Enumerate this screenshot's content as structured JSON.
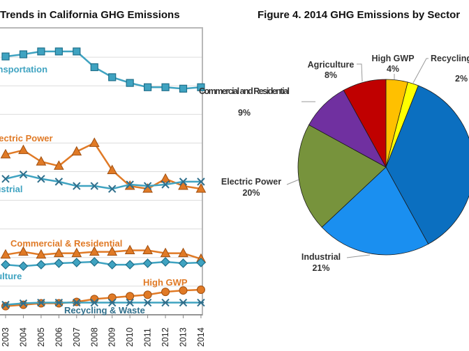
{
  "chart_data": [
    {
      "type": "line",
      "title": "Trends in California GHG Emissions",
      "x": [
        2003,
        2004,
        2005,
        2006,
        2007,
        2008,
        2009,
        2010,
        2011,
        2012,
        2013,
        2014
      ],
      "x_tick_labels": [
        "2003",
        "2004",
        "2005",
        "2006",
        "2007",
        "2008",
        "2009",
        "2010",
        "2011",
        "2012",
        "2013",
        "2014"
      ],
      "ylim": [
        0,
        200
      ],
      "grid": true,
      "series": [
        {
          "name": "Transportation",
          "color": "#3fa3c1",
          "marker": "square",
          "values": [
            180.5,
            182,
            184,
            184,
            184,
            173,
            166,
            162,
            159,
            159,
            158,
            159
          ]
        },
        {
          "name": "Electric Power",
          "color": "#e07a26",
          "marker": "triangle",
          "values": [
            112,
            115,
            107,
            104,
            114,
            120,
            101,
            90,
            88,
            95,
            90,
            88
          ]
        },
        {
          "name": "Industrial",
          "color": "#3fa3c1",
          "marker": "x",
          "values": [
            95,
            98,
            95,
            93,
            90,
            90,
            88,
            91,
            90,
            91,
            93,
            93
          ]
        },
        {
          "name": "Commercial & Residential",
          "color": "#e07a26",
          "marker": "triangle",
          "values": [
            42,
            44,
            42,
            43,
            43,
            44,
            44,
            45,
            45,
            43,
            43,
            39
          ]
        },
        {
          "name": "Agriculture",
          "color": "#3fa3c1",
          "marker": "diamond",
          "values": [
            35,
            34,
            35,
            36,
            36.5,
            37,
            35,
            35,
            36,
            37,
            36,
            36.5
          ]
        },
        {
          "name": "High GWP",
          "color": "#e07a26",
          "marker": "circle",
          "values": [
            6,
            7,
            8,
            8,
            9,
            11,
            12,
            13,
            14,
            16,
            17,
            17.5
          ]
        },
        {
          "name": "Recycling & Waste",
          "color": "#3fa3c1",
          "label_color": "#2f6f8c",
          "marker": "asterisk",
          "values": [
            7,
            8,
            8.5,
            8.5,
            8.5,
            8.5,
            8.5,
            8.5,
            8.5,
            8.5,
            8.5,
            8.5
          ]
        }
      ]
    },
    {
      "type": "pie",
      "title": "Figure 4. 2014 GHG Emissions by Sector",
      "slices": [
        {
          "name": "High GWP",
          "percent_label": "4%",
          "value": 4,
          "color": "#ffc000"
        },
        {
          "name": "Recycling & Waste",
          "percent_label": "2%",
          "value": 2,
          "color": "#ffff00"
        },
        {
          "name": "",
          "percent_label": "",
          "value": 36,
          "color": "#0b6fc0"
        },
        {
          "name": "Industrial",
          "percent_label": "21%",
          "value": 21,
          "color": "#1a8ff0"
        },
        {
          "name": "Electric Power",
          "percent_label": "20%",
          "value": 20,
          "color": "#77933c"
        },
        {
          "name": "Commercial and Residential",
          "percent_label": "9%",
          "value": 9,
          "color": "#7030a0"
        },
        {
          "name": "Agriculture",
          "percent_label": "8%",
          "value": 8,
          "color": "#c00000"
        }
      ]
    }
  ]
}
